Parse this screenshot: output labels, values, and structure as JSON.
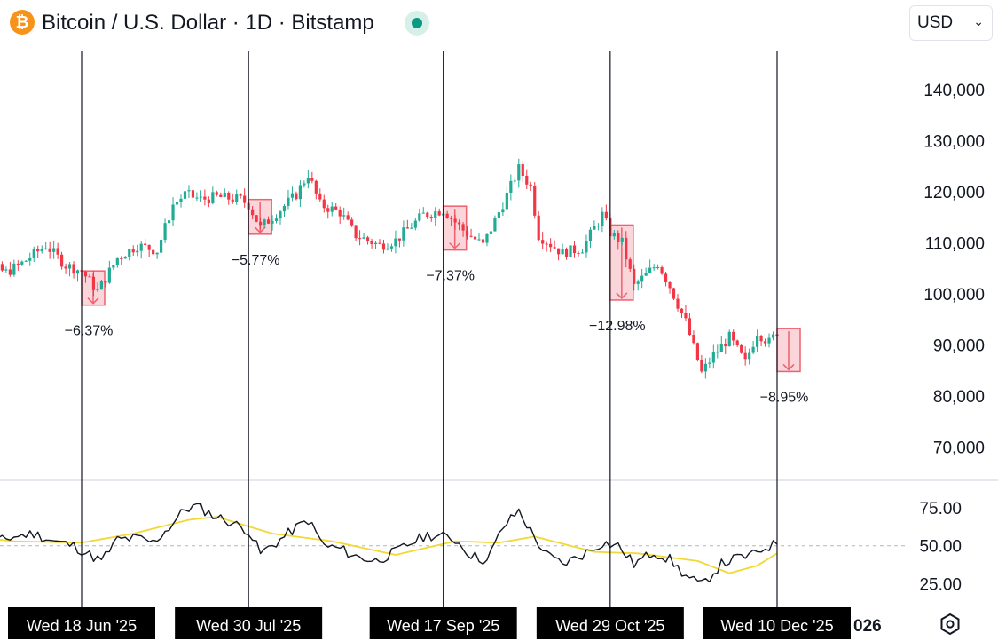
{
  "header": {
    "title": "Bitcoin / U.S. Dollar · 1D · Bitstamp",
    "logo_icon": "bitcoin-icon",
    "logo_glyph": "₿",
    "logo_color": "#f7931a",
    "status_color": "#089981",
    "currency": "USD"
  },
  "colors": {
    "up": "#22ab94",
    "down": "#f23645",
    "ma": "#f2d834",
    "rsi": "#131722",
    "box_fill": "#f8c7cd",
    "box_stroke": "#f0606f"
  },
  "chart_data": [
    {
      "type": "candlestick",
      "title": "Bitcoin / U.S. Dollar · 1D · Bitstamp",
      "y_ticks": [
        140000,
        130000,
        120000,
        110000,
        100000,
        90000,
        80000,
        70000
      ],
      "y_tick_labels": [
        "140,000",
        "130,000",
        "120,000",
        "110,000",
        "100,000",
        "90,000",
        "80,000",
        "70,000"
      ],
      "ylim": [
        64000,
        147500
      ],
      "x_range": [
        "2025-05-17",
        "2025-12-25"
      ],
      "grid": false,
      "price_points": [
        [
          "2025-05-17",
          104500
        ],
        [
          "2025-05-24",
          106000
        ],
        [
          "2025-05-30",
          104200
        ],
        [
          "2025-06-03",
          106000
        ],
        [
          "2025-06-09",
          109500
        ],
        [
          "2025-06-14",
          105600
        ],
        [
          "2025-06-18",
          104500
        ],
        [
          "2025-06-22",
          100500
        ],
        [
          "2025-06-27",
          107000
        ],
        [
          "2025-07-02",
          109500
        ],
        [
          "2025-07-07",
          108500
        ],
        [
          "2025-07-11",
          117500
        ],
        [
          "2025-07-14",
          119500
        ],
        [
          "2025-07-18",
          118500
        ],
        [
          "2025-07-22",
          119000
        ],
        [
          "2025-07-28",
          118500
        ],
        [
          "2025-07-30",
          117500
        ],
        [
          "2025-08-02",
          113000
        ],
        [
          "2025-08-07",
          116500
        ],
        [
          "2025-08-11",
          119500
        ],
        [
          "2025-08-14",
          123500
        ],
        [
          "2025-08-17",
          117500
        ],
        [
          "2025-08-22",
          116000
        ],
        [
          "2025-08-26",
          111500
        ],
        [
          "2025-09-01",
          109500
        ],
        [
          "2025-09-05",
          110500
        ],
        [
          "2025-09-12",
          115500
        ],
        [
          "2025-09-17",
          116500
        ],
        [
          "2025-09-22",
          112500
        ],
        [
          "2025-09-27",
          109500
        ],
        [
          "2025-10-01",
          116000
        ],
        [
          "2025-10-06",
          124500
        ],
        [
          "2025-10-09",
          121000
        ],
        [
          "2025-10-11",
          111500
        ],
        [
          "2025-10-17",
          108000
        ],
        [
          "2025-10-22",
          109000
        ],
        [
          "2025-10-27",
          115500
        ],
        [
          "2025-10-29",
          112000
        ],
        [
          "2025-11-01",
          110000
        ],
        [
          "2025-11-04",
          101500
        ],
        [
          "2025-11-10",
          106000
        ],
        [
          "2025-11-13",
          101500
        ],
        [
          "2025-11-17",
          94500
        ],
        [
          "2025-11-21",
          84500
        ],
        [
          "2025-11-24",
          88000
        ],
        [
          "2025-11-28",
          91500
        ],
        [
          "2025-12-02",
          86500
        ],
        [
          "2025-12-05",
          92500
        ],
        [
          "2025-12-08",
          90500
        ],
        [
          "2025-12-10",
          92500
        ]
      ],
      "drops": [
        {
          "date": "2025-06-18",
          "label": "−6.37%",
          "from": 104500,
          "to": 97800
        },
        {
          "date": "2025-07-30",
          "label": "−5.77%",
          "from": 118500,
          "to": 111700
        },
        {
          "date": "2025-09-17",
          "label": "−7.37%",
          "from": 117200,
          "to": 108600
        },
        {
          "date": "2025-10-29",
          "label": "−12.98%",
          "from": 113500,
          "to": 98800
        },
        {
          "date": "2025-12-10",
          "label": "−8.95%",
          "from": 93200,
          "to": 84800
        }
      ]
    },
    {
      "type": "line",
      "y_ticks": [
        75,
        50,
        25
      ],
      "y_tick_labels": [
        "75.00",
        "50.00",
        "25.00"
      ],
      "ylim": [
        12,
        90
      ],
      "reference_line": 50,
      "series": [
        {
          "values": [
            [
              "2025-05-17",
              55
            ],
            [
              "2025-05-22",
              58
            ],
            [
              "2025-05-27",
              52
            ],
            [
              "2025-06-01",
              56
            ],
            [
              "2025-06-06",
              58
            ],
            [
              "2025-06-11",
              53
            ],
            [
              "2025-06-16",
              50
            ],
            [
              "2025-06-20",
              44
            ],
            [
              "2025-06-23",
              40
            ],
            [
              "2025-06-27",
              54
            ],
            [
              "2025-07-02",
              55
            ],
            [
              "2025-07-06",
              52
            ],
            [
              "2025-07-10",
              62
            ],
            [
              "2025-07-14",
              74
            ],
            [
              "2025-07-17",
              76
            ],
            [
              "2025-07-21",
              70
            ],
            [
              "2025-07-25",
              66
            ],
            [
              "2025-07-30",
              60
            ],
            [
              "2025-08-02",
              45
            ],
            [
              "2025-08-06",
              52
            ],
            [
              "2025-08-10",
              60
            ],
            [
              "2025-08-14",
              67
            ],
            [
              "2025-08-18",
              50
            ],
            [
              "2025-08-22",
              48
            ],
            [
              "2025-08-26",
              43
            ],
            [
              "2025-08-31",
              40
            ],
            [
              "2025-09-05",
              46
            ],
            [
              "2025-09-09",
              52
            ],
            [
              "2025-09-13",
              57
            ],
            [
              "2025-09-17",
              56
            ],
            [
              "2025-09-20",
              54
            ],
            [
              "2025-09-24",
              44
            ],
            [
              "2025-09-28",
              40
            ],
            [
              "2025-10-02",
              62
            ],
            [
              "2025-10-06",
              73
            ],
            [
              "2025-10-10",
              55
            ],
            [
              "2025-10-13",
              44
            ],
            [
              "2025-10-17",
              38
            ],
            [
              "2025-10-22",
              44
            ],
            [
              "2025-10-27",
              52
            ],
            [
              "2025-10-31",
              50
            ],
            [
              "2025-11-04",
              38
            ],
            [
              "2025-11-09",
              46
            ],
            [
              "2025-11-13",
              41
            ],
            [
              "2025-11-17",
              30
            ],
            [
              "2025-11-21",
              24
            ],
            [
              "2025-11-26",
              38
            ],
            [
              "2025-11-30",
              42
            ],
            [
              "2025-12-04",
              44
            ],
            [
              "2025-12-07",
              49
            ],
            [
              "2025-12-10",
              51
            ]
          ]
        },
        {
          "values": [
            [
              "2025-05-17",
              57
            ],
            [
              "2025-06-01",
              53
            ],
            [
              "2025-06-18",
              52
            ],
            [
              "2025-07-01",
              58
            ],
            [
              "2025-07-15",
              67
            ],
            [
              "2025-07-22",
              69
            ],
            [
              "2025-08-05",
              58
            ],
            [
              "2025-08-20",
              53
            ],
            [
              "2025-09-05",
              44
            ],
            [
              "2025-09-20",
              53
            ],
            [
              "2025-10-01",
              52
            ],
            [
              "2025-10-10",
              56
            ],
            [
              "2025-10-25",
              46
            ],
            [
              "2025-11-05",
              45
            ],
            [
              "2025-11-20",
              40
            ],
            [
              "2025-11-28",
              32
            ],
            [
              "2025-12-05",
              37
            ],
            [
              "2025-12-10",
              45
            ]
          ]
        }
      ]
    }
  ],
  "x_axis": {
    "markers": [
      {
        "date": "2025-06-18",
        "label": "Wed 18 Jun '25"
      },
      {
        "date": "2025-07-30",
        "label": "Wed 30 Jul '25"
      },
      {
        "date": "2025-09-17",
        "label": "Wed 17 Sep '25"
      },
      {
        "date": "2025-10-29",
        "label": "Wed 29 Oct '25"
      },
      {
        "date": "2025-12-10",
        "label": "Wed 10 Dec '25"
      }
    ],
    "tail_label": "026"
  },
  "settings_icon": "settings-icon"
}
